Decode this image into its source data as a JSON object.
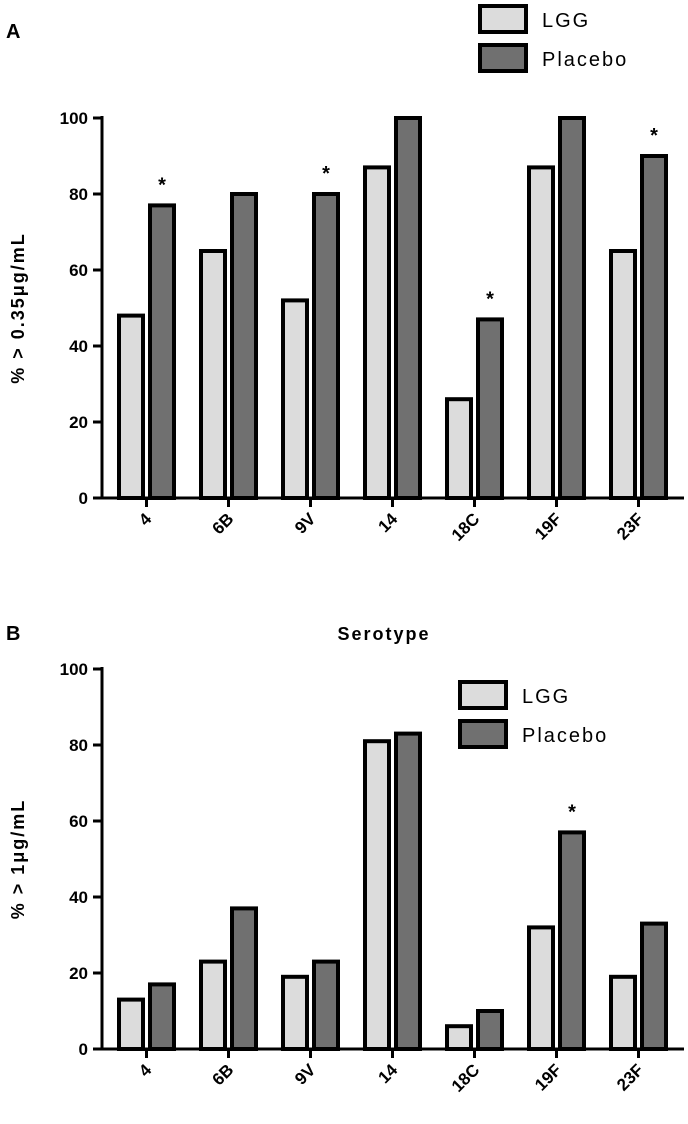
{
  "chart_data": [
    {
      "type": "bar",
      "panel": "A",
      "title": "",
      "xlabel": "",
      "ylabel": "% > 0.35μg/mL",
      "ylim": [
        0,
        100
      ],
      "yticks": [
        0,
        20,
        40,
        60,
        80,
        100
      ],
      "categories": [
        "4",
        "6B",
        "9V",
        "14",
        "18C",
        "19F",
        "23F"
      ],
      "series": [
        {
          "name": "LGG",
          "color": "#dcdcdc",
          "values": [
            48,
            65,
            52,
            87,
            26,
            87,
            65
          ]
        },
        {
          "name": "Placebo",
          "color": "#707070",
          "values": [
            77,
            80,
            80,
            100,
            47,
            100,
            90
          ]
        }
      ],
      "significance": [
        "*",
        "",
        "*",
        "",
        "*",
        "",
        "*"
      ],
      "legend_position": "top-right"
    },
    {
      "type": "bar",
      "panel": "B",
      "title": "Serotype",
      "xlabel": "",
      "ylabel": "% > 1μg/mL",
      "ylim": [
        0,
        100
      ],
      "yticks": [
        0,
        20,
        40,
        60,
        80,
        100
      ],
      "categories": [
        "4",
        "6B",
        "9V",
        "14",
        "18C",
        "19F",
        "23F"
      ],
      "series": [
        {
          "name": "LGG",
          "color": "#dcdcdc",
          "values": [
            13,
            23,
            19,
            81,
            6,
            32,
            19
          ]
        },
        {
          "name": "Placebo",
          "color": "#707070",
          "values": [
            17,
            37,
            23,
            83,
            10,
            57,
            33
          ]
        }
      ],
      "significance": [
        "",
        "",
        "",
        "",
        "",
        "*",
        ""
      ],
      "legend_position": "top-right"
    }
  ]
}
